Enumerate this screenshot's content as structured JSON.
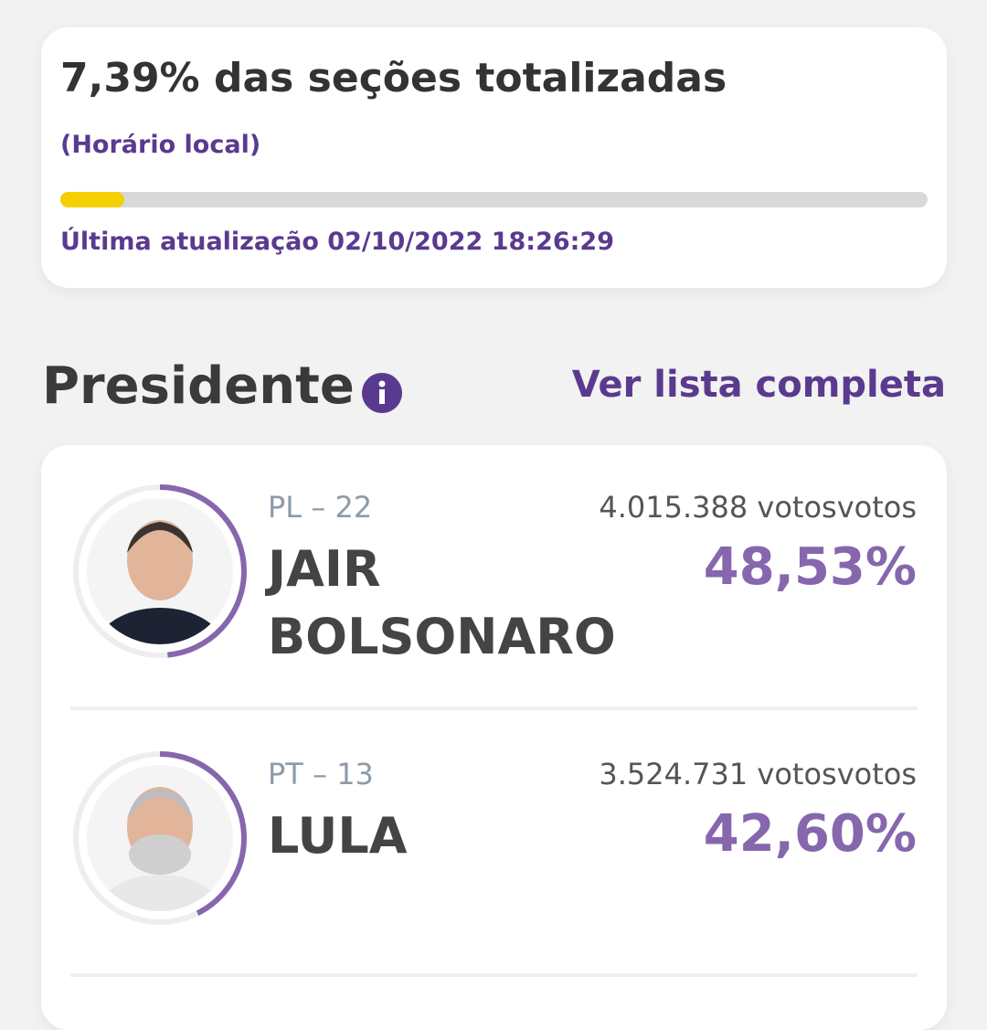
{
  "header": {
    "title": "7,39% das seções totalizadas",
    "subtitle": "(Horário local)",
    "progress": 7.39,
    "updated": "Última atualização 02/10/2022 18:26:29"
  },
  "section": {
    "title": "Presidente",
    "link": "Ver lista completa"
  },
  "candidates": [
    {
      "party": "PL – 22",
      "votes": "4.015.388 votosvotos",
      "name": "JAIR BOLSONARO",
      "share": {
        "value": 48.53,
        "label": "48,53%"
      }
    },
    {
      "party": "PT – 13",
      "votes": "3.524.731 votosvotos",
      "name": "LULA",
      "share": {
        "value": 42.6,
        "label": "42,60%"
      }
    }
  ]
}
